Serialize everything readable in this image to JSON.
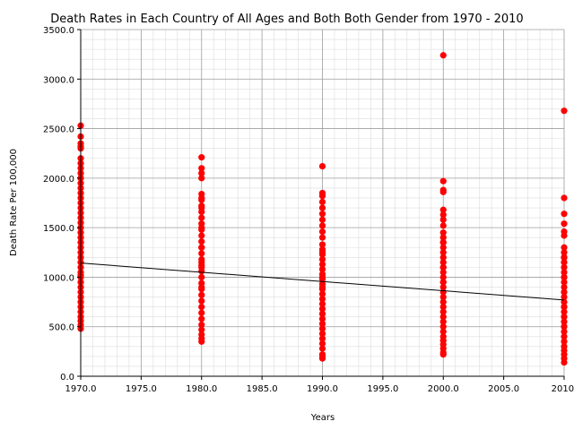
{
  "chart_data": {
    "type": "scatter",
    "title": "Death Rates in Each Country of All Ages and Both Both Gender from 1970 - 2010",
    "xlabel": "Years",
    "ylabel": "Death Rate Per 100,000",
    "xlim": [
      1970,
      2010
    ],
    "ylim": [
      0,
      3500
    ],
    "x_ticks": [
      1970,
      1975,
      1980,
      1985,
      1990,
      1995,
      2000,
      2005,
      2010
    ],
    "x_tick_labels": [
      "1970.0",
      "1975.0",
      "1980.0",
      "1985.0",
      "1990.0",
      "1995.0",
      "2000.0",
      "2005.0",
      "2010."
    ],
    "y_ticks": [
      0,
      500,
      1000,
      1500,
      2000,
      2500,
      3000,
      3500
    ],
    "y_tick_labels": [
      "0.0",
      "500.0",
      "1000.0",
      "1500.0",
      "2000.0",
      "2500.0",
      "3000.0",
      "3500.0"
    ],
    "grid": true,
    "marker_color": "#ff0000",
    "trend_line": {
      "x": [
        1970,
        2010
      ],
      "y": [
        1143,
        770
      ],
      "color": "#000000"
    },
    "series": [
      {
        "x": [
          1970,
          1970,
          1970,
          1970,
          1970,
          1970,
          1970,
          1970,
          1970,
          1970,
          1970,
          1970,
          1970,
          1970,
          1970,
          1970,
          1970,
          1970,
          1970,
          1970,
          1970,
          1970,
          1970,
          1970,
          1970,
          1970,
          1970,
          1970,
          1970,
          1970,
          1970,
          1970,
          1970,
          1970,
          1970,
          1970,
          1970,
          1970,
          1970,
          1970,
          1970,
          1970,
          1980,
          1980,
          1980,
          1980,
          1980,
          1980,
          1980,
          1980,
          1980,
          1980,
          1980,
          1980,
          1980,
          1980,
          1980,
          1980,
          1980,
          1980,
          1980,
          1980,
          1980,
          1980,
          1980,
          1980,
          1980,
          1980,
          1980,
          1980,
          1980,
          1980,
          1980,
          1980,
          1980,
          1980,
          1980,
          1980,
          1980,
          1980,
          1990,
          1990,
          1990,
          1990,
          1990,
          1990,
          1990,
          1990,
          1990,
          1990,
          1990,
          1990,
          1990,
          1990,
          1990,
          1990,
          1990,
          1990,
          1990,
          1990,
          1990,
          1990,
          1990,
          1990,
          1990,
          1990,
          1990,
          1990,
          1990,
          1990,
          1990,
          1990,
          1990,
          1990,
          1990,
          1990,
          1990,
          1990,
          2000,
          2000,
          2000,
          2000,
          2000,
          2000,
          2000,
          2000,
          2000,
          2000,
          2000,
          2000,
          2000,
          2000,
          2000,
          2000,
          2000,
          2000,
          2000,
          2000,
          2000,
          2000,
          2000,
          2000,
          2000,
          2000,
          2000,
          2000,
          2000,
          2000,
          2000,
          2000,
          2000,
          2000,
          2000,
          2000,
          2000,
          2000,
          2010,
          2010,
          2010,
          2010,
          2010,
          2010,
          2010,
          2010,
          2010,
          2010,
          2010,
          2010,
          2010,
          2010,
          2010,
          2010,
          2010,
          2010,
          2010,
          2010,
          2010,
          2010,
          2010,
          2010,
          2010,
          2010,
          2010,
          2010,
          2010,
          2010,
          2010,
          2010,
          2010,
          2010,
          2010
        ],
        "y": [
          480,
          520,
          560,
          600,
          650,
          700,
          750,
          800,
          850,
          900,
          950,
          1000,
          1050,
          1100,
          1150,
          1200,
          1250,
          1300,
          1350,
          1400,
          1450,
          1500,
          1550,
          1600,
          1650,
          1700,
          1750,
          1800,
          1850,
          1900,
          1950,
          2000,
          2050,
          2100,
          2150,
          2200,
          2300,
          2320,
          2350,
          2420,
          2530,
          1020,
          350,
          380,
          420,
          470,
          520,
          580,
          640,
          700,
          760,
          820,
          880,
          940,
          1000,
          1060,
          1120,
          1180,
          1240,
          1300,
          1360,
          1420,
          1480,
          1540,
          1600,
          1660,
          1720,
          1780,
          1840,
          2000,
          2050,
          2100,
          2210,
          900,
          1100,
          1300,
          1500,
          1700,
          1800,
          1150,
          180,
          200,
          220,
          280,
          330,
          380,
          430,
          480,
          530,
          580,
          630,
          680,
          730,
          780,
          830,
          880,
          930,
          980,
          1030,
          1080,
          1130,
          1180,
          1230,
          1280,
          1330,
          1400,
          1460,
          1520,
          1580,
          1640,
          1700,
          1760,
          1820,
          1850,
          2120,
          1000,
          1250,
          900,
          220,
          240,
          280,
          320,
          360,
          400,
          450,
          500,
          550,
          600,
          650,
          700,
          750,
          800,
          850,
          900,
          950,
          1000,
          1050,
          1100,
          1150,
          1200,
          1250,
          1300,
          1350,
          1400,
          1450,
          1520,
          1580,
          1630,
          1680,
          1860,
          1880,
          1970,
          3240,
          1100,
          1350,
          950,
          140,
          180,
          220,
          260,
          300,
          350,
          400,
          450,
          500,
          550,
          600,
          650,
          700,
          750,
          800,
          850,
          900,
          950,
          1000,
          1050,
          1100,
          1150,
          1200,
          1250,
          1300,
          1420,
          1460,
          1540,
          1640,
          1800,
          2680,
          1000,
          1200,
          700,
          850
        ]
      }
    ]
  }
}
